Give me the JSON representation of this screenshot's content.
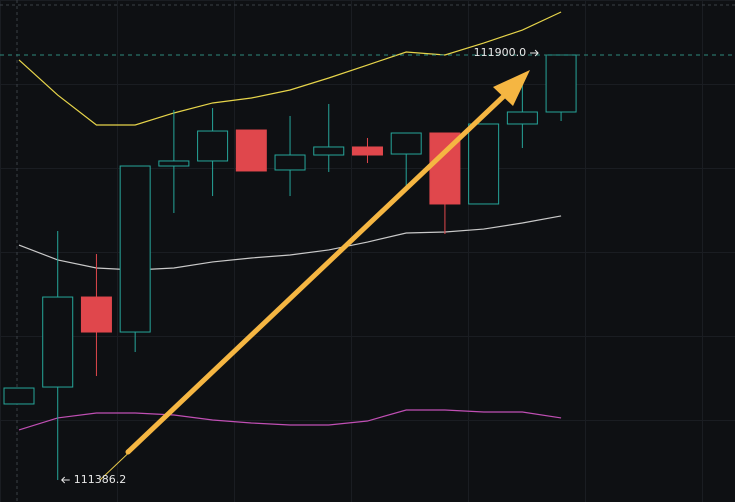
{
  "chart_data": {
    "type": "candlestick",
    "categories": [
      null,
      null,
      null,
      null,
      null,
      null,
      null,
      null,
      null,
      null,
      null,
      null,
      null,
      null,
      null
    ],
    "open": [
      111478.1,
      111498.6,
      111607.4,
      111565.1,
      111765.8,
      111771.9,
      111809.3,
      111761.0,
      111779.1,
      111788.8,
      111780.3,
      111805.7,
      111719.9,
      111816.6,
      111831.1
    ],
    "high": [
      111497.4,
      111687.2,
      111659.4,
      111765.8,
      111833.5,
      111835.9,
      111809.3,
      111826.3,
      111840.8,
      111799.7,
      111805.7,
      111805.7,
      111816.6,
      111873.4,
      111900.0
    ],
    "low": [
      111478.1,
      111386.2,
      111511.9,
      111540.9,
      111709.0,
      111729.5,
      111759.8,
      111729.5,
      111758.6,
      111769.4,
      111735.6,
      111683.6,
      111719.9,
      111787.6,
      111820.2
    ],
    "close": [
      111497.4,
      111607.4,
      111565.1,
      111765.8,
      111771.9,
      111808.1,
      111759.8,
      111779.1,
      111788.8,
      111779.1,
      111805.7,
      111719.9,
      111816.6,
      111831.1,
      111900.0
    ],
    "up_color": "#26a69a",
    "down_color": "#e0474c",
    "series": [
      {
        "color": "#e6d44a",
        "values": [
          111894.0,
          111851.6,
          111815.4,
          111815.4,
          111829.9,
          111842.0,
          111848.0,
          111857.7,
          111872.2,
          111887.9,
          111903.6,
          111900.0,
          111914.5,
          111930.2,
          111952.0
        ]
      },
      {
        "color": "#c9c9c9",
        "values": [
          111670.3,
          111652.2,
          111642.5,
          111640.1,
          111642.5,
          111649.8,
          111654.6,
          111658.2,
          111664.3,
          111673.9,
          111684.8,
          111686.0,
          111689.6,
          111696.9,
          111705.4
        ]
      },
      {
        "color": "#c04fb4",
        "values": [
          111446.7,
          111461.2,
          111467.2,
          111467.2,
          111464.8,
          111458.7,
          111455.1,
          111452.7,
          111452.7,
          111457.5,
          111470.8,
          111470.8,
          111468.4,
          111468.4,
          111461.2
        ]
      }
    ],
    "ylim": [
      111359.6,
      111966.5
    ],
    "high_marker": {
      "value": 111900.0,
      "label": "111900.0"
    },
    "low_marker": {
      "value": 111386.2,
      "label": "111386.2"
    }
  }
}
